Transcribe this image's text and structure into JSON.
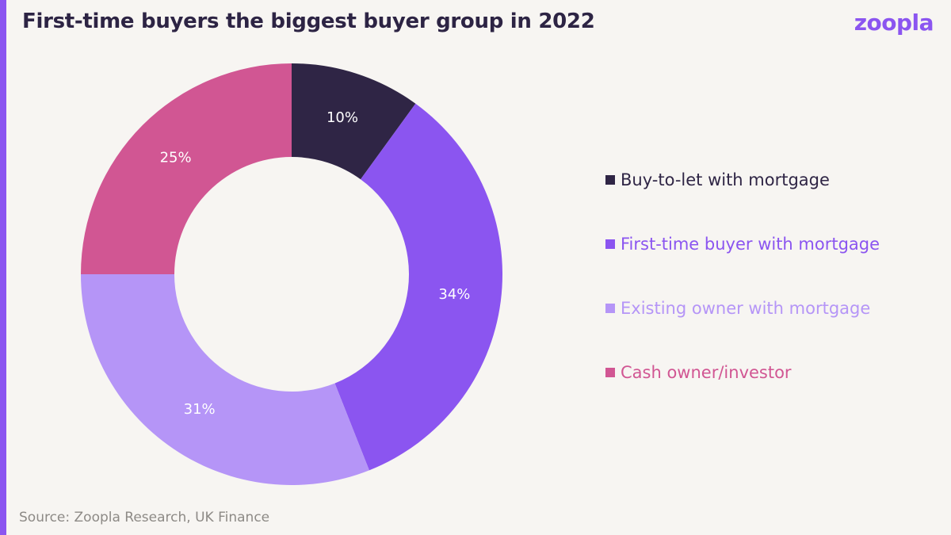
{
  "header": {
    "title": "First-time buyers the biggest buyer group in 2022",
    "logo_text": "ZOOPLA"
  },
  "colors": {
    "accent": "#8b55f0",
    "background": "#f7f5f2",
    "title": "#2d2444"
  },
  "chart_data": {
    "type": "pie",
    "variant": "donut",
    "categories": [
      "Buy-to-let with mortgage",
      "First-time buyer with mortgage",
      "Existing owner with mortgage",
      "Cash owner/investor"
    ],
    "values": [
      10,
      34,
      31,
      25
    ],
    "labels": [
      "10%",
      "34%",
      "31%",
      "25%"
    ],
    "colors": [
      "#2f2545",
      "#8b55f0",
      "#b595f7",
      "#d15693"
    ],
    "legend_placement": "right"
  },
  "footer": {
    "source": "Source: Zoopla Research, UK Finance"
  }
}
